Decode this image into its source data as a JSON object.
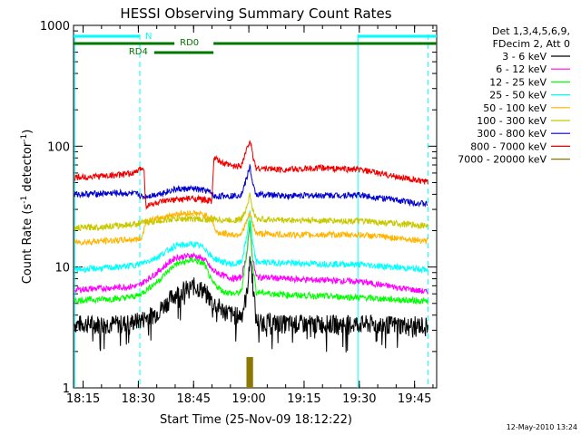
{
  "chart_data": {
    "type": "line",
    "title": "HESSI Observing Summary Count Rates",
    "xlabel": "Start Time (25-Nov-09 18:12:22)",
    "ylabel_main": "Count Rate (s",
    "ylabel_sup1": "-1",
    "ylabel_mid": " detector",
    "ylabel_sup2": "-1",
    "ylabel_end": ")",
    "y_scale": "log",
    "ylim": [
      1,
      1000
    ],
    "xlim_min": [
      1092.4,
      1191
    ],
    "x_ticks": [
      {
        "min": 1095,
        "label": "18:15"
      },
      {
        "min": 1110,
        "label": "18:30"
      },
      {
        "min": 1125,
        "label": "18:45"
      },
      {
        "min": 1140,
        "label": "19:00"
      },
      {
        "min": 1155,
        "label": "19:15"
      },
      {
        "min": 1170,
        "label": "19:30"
      },
      {
        "min": 1185,
        "label": "19:45"
      }
    ],
    "y_ticks": [
      {
        "value": 1,
        "label": "1"
      },
      {
        "value": 10,
        "label": "10"
      },
      {
        "value": 100,
        "label": "100"
      },
      {
        "value": 1000,
        "label": "1000"
      }
    ],
    "legend_header": [
      "Det 1,3,4,5,6,9,",
      "FDecim 2, Att 0"
    ],
    "legend_position": "right",
    "footer_date": "12-May-2010 13:24",
    "night_boundaries_min": [
      1092.7,
      1110.4,
      1169.6,
      1188.7
    ],
    "bars": [
      {
        "label": "N",
        "color": "#00ffff",
        "row": 1,
        "segments": [
          [
            1092.4,
            1110.4
          ],
          [
            1169.6,
            1191
          ]
        ]
      },
      {
        "label": "RD0",
        "color": "#007700",
        "row": 2,
        "segments": [
          [
            1092.4,
            1119.8
          ],
          [
            1130.4,
            1191
          ]
        ]
      },
      {
        "label": "RD4",
        "color": "#007700",
        "row": 3,
        "segments": [
          [
            1114.3,
            1130.4
          ]
        ]
      }
    ],
    "series": [
      {
        "name": "3 - 6 keV",
        "color": "#000000",
        "points": [
          [
            1092.7,
            3.4
          ],
          [
            1105,
            3.4
          ],
          [
            1110,
            3.6
          ],
          [
            1115,
            4.2
          ],
          [
            1120,
            6.0
          ],
          [
            1125,
            7.0
          ],
          [
            1128,
            6.4
          ],
          [
            1130,
            5.2
          ],
          [
            1133,
            4.4
          ],
          [
            1136,
            4.0
          ],
          [
            1138,
            4.0
          ],
          [
            1139.5,
            6.0
          ],
          [
            1140.3,
            13.0
          ],
          [
            1141,
            8.0
          ],
          [
            1142,
            3.6
          ],
          [
            1150,
            3.4
          ],
          [
            1170,
            3.4
          ],
          [
            1188.7,
            3.3
          ]
        ]
      },
      {
        "name": "6 - 12 keV",
        "color": "#ff00ff",
        "points": [
          [
            1092.7,
            6.5
          ],
          [
            1105,
            6.8
          ],
          [
            1110,
            7.0
          ],
          [
            1115,
            9.0
          ],
          [
            1120,
            12.0
          ],
          [
            1125,
            12.5
          ],
          [
            1128,
            11.5
          ],
          [
            1130,
            9.5
          ],
          [
            1133,
            8.5
          ],
          [
            1136,
            8.0
          ],
          [
            1138,
            8.2
          ],
          [
            1139.5,
            13.0
          ],
          [
            1140.3,
            22.0
          ],
          [
            1141,
            12.0
          ],
          [
            1142,
            8.3
          ],
          [
            1150,
            8.0
          ],
          [
            1170,
            7.6
          ],
          [
            1188.7,
            6.2
          ]
        ]
      },
      {
        "name": "12 - 25 keV",
        "color": "#00ff00",
        "points": [
          [
            1092.7,
            5.3
          ],
          [
            1105,
            5.5
          ],
          [
            1110,
            5.8
          ],
          [
            1115,
            7.5
          ],
          [
            1120,
            10.5
          ],
          [
            1125,
            11.5
          ],
          [
            1128,
            10.5
          ],
          [
            1130,
            7.5
          ],
          [
            1133,
            6.3
          ],
          [
            1136,
            6.0
          ],
          [
            1138,
            6.2
          ],
          [
            1139.5,
            14.0
          ],
          [
            1140.3,
            24.0
          ],
          [
            1141,
            11.0
          ],
          [
            1142,
            6.2
          ],
          [
            1150,
            5.9
          ],
          [
            1170,
            5.6
          ],
          [
            1188.7,
            5.2
          ]
        ]
      },
      {
        "name": "25 - 50 keV",
        "color": "#00ffff",
        "points": [
          [
            1092.7,
            9.5
          ],
          [
            1105,
            10.0
          ],
          [
            1110,
            10.5
          ],
          [
            1115,
            12.0
          ],
          [
            1120,
            15.0
          ],
          [
            1125,
            15.5
          ],
          [
            1128,
            14.5
          ],
          [
            1130,
            12.0
          ],
          [
            1133,
            11.0
          ],
          [
            1136,
            10.5
          ],
          [
            1138,
            11.0
          ],
          [
            1139.5,
            18.0
          ],
          [
            1140.3,
            30.0
          ],
          [
            1141,
            16.0
          ],
          [
            1142,
            11.0
          ],
          [
            1150,
            10.8
          ],
          [
            1170,
            10.5
          ],
          [
            1188.7,
            9.5
          ]
        ]
      },
      {
        "name": "50 - 100 keV",
        "color": "#ffb400",
        "points": [
          [
            1092.7,
            16.0
          ],
          [
            1110,
            17.0
          ],
          [
            1111,
            17.5
          ],
          [
            1112,
            24.0
          ],
          [
            1115,
            25.0
          ],
          [
            1120,
            27.5
          ],
          [
            1125,
            28.0
          ],
          [
            1128,
            27.0
          ],
          [
            1130,
            25.5
          ],
          [
            1131,
            19.5
          ],
          [
            1133,
            19.0
          ],
          [
            1136,
            18.5
          ],
          [
            1138,
            19.0
          ],
          [
            1139.5,
            24.0
          ],
          [
            1140.3,
            28.0
          ],
          [
            1141,
            23.0
          ],
          [
            1142,
            19.0
          ],
          [
            1150,
            18.5
          ],
          [
            1170,
            18.5
          ],
          [
            1188.7,
            16.5
          ]
        ]
      },
      {
        "name": "100 - 300 keV",
        "color": "#c8c800",
        "points": [
          [
            1092.7,
            21.0
          ],
          [
            1105,
            22.0
          ],
          [
            1110,
            23.0
          ],
          [
            1115,
            24.0
          ],
          [
            1120,
            25.0
          ],
          [
            1125,
            25.0
          ],
          [
            1130,
            24.5
          ],
          [
            1131,
            25.0
          ],
          [
            1133,
            24.5
          ],
          [
            1136,
            24.5
          ],
          [
            1138,
            25.0
          ],
          [
            1139.5,
            32.0
          ],
          [
            1140.3,
            40.0
          ],
          [
            1141,
            30.0
          ],
          [
            1142,
            25.0
          ],
          [
            1150,
            24.5
          ],
          [
            1170,
            24.0
          ],
          [
            1188.7,
            22.0
          ]
        ]
      },
      {
        "name": "300 - 800 keV",
        "color": "#0000cc",
        "points": [
          [
            1092.7,
            40.0
          ],
          [
            1105,
            41.0
          ],
          [
            1110,
            40.0
          ],
          [
            1111,
            38.0
          ],
          [
            1115,
            40.0
          ],
          [
            1120,
            44.0
          ],
          [
            1125,
            44.5
          ],
          [
            1128,
            43.0
          ],
          [
            1130,
            41.0
          ],
          [
            1130.5,
            38.0
          ],
          [
            1133,
            39.0
          ],
          [
            1136,
            39.0
          ],
          [
            1138,
            40.0
          ],
          [
            1139.5,
            55.0
          ],
          [
            1140.3,
            70.0
          ],
          [
            1141,
            48.0
          ],
          [
            1142,
            40.0
          ],
          [
            1150,
            39.0
          ],
          [
            1170,
            39.5
          ],
          [
            1188.7,
            33.0
          ]
        ]
      },
      {
        "name": "800 - 7000 keV",
        "color": "#ee0000",
        "points": [
          [
            1092.7,
            55.0
          ],
          [
            1105,
            58.0
          ],
          [
            1109,
            60.0
          ],
          [
            1111.5,
            68.0
          ],
          [
            1112,
            32.0
          ],
          [
            1115,
            34.0
          ],
          [
            1120,
            36.0
          ],
          [
            1125,
            37.0
          ],
          [
            1128,
            36.0
          ],
          [
            1130,
            35.0
          ],
          [
            1130.5,
            80.0
          ],
          [
            1133,
            72.0
          ],
          [
            1136,
            68.0
          ],
          [
            1138,
            70.0
          ],
          [
            1139.5,
            95.0
          ],
          [
            1140.3,
            115.0
          ],
          [
            1141,
            85.0
          ],
          [
            1142,
            66.0
          ],
          [
            1150,
            64.0
          ],
          [
            1160,
            66.0
          ],
          [
            1170,
            64.0
          ],
          [
            1188.7,
            50.0
          ]
        ]
      },
      {
        "name": "7000 - 20000 keV",
        "color": "#8c7800",
        "points": [
          [
            1139.6,
            1.8
          ],
          [
            1140.1,
            1.8
          ],
          [
            1140.5,
            1.8
          ],
          [
            1140.9,
            1.8
          ]
        ]
      }
    ]
  }
}
